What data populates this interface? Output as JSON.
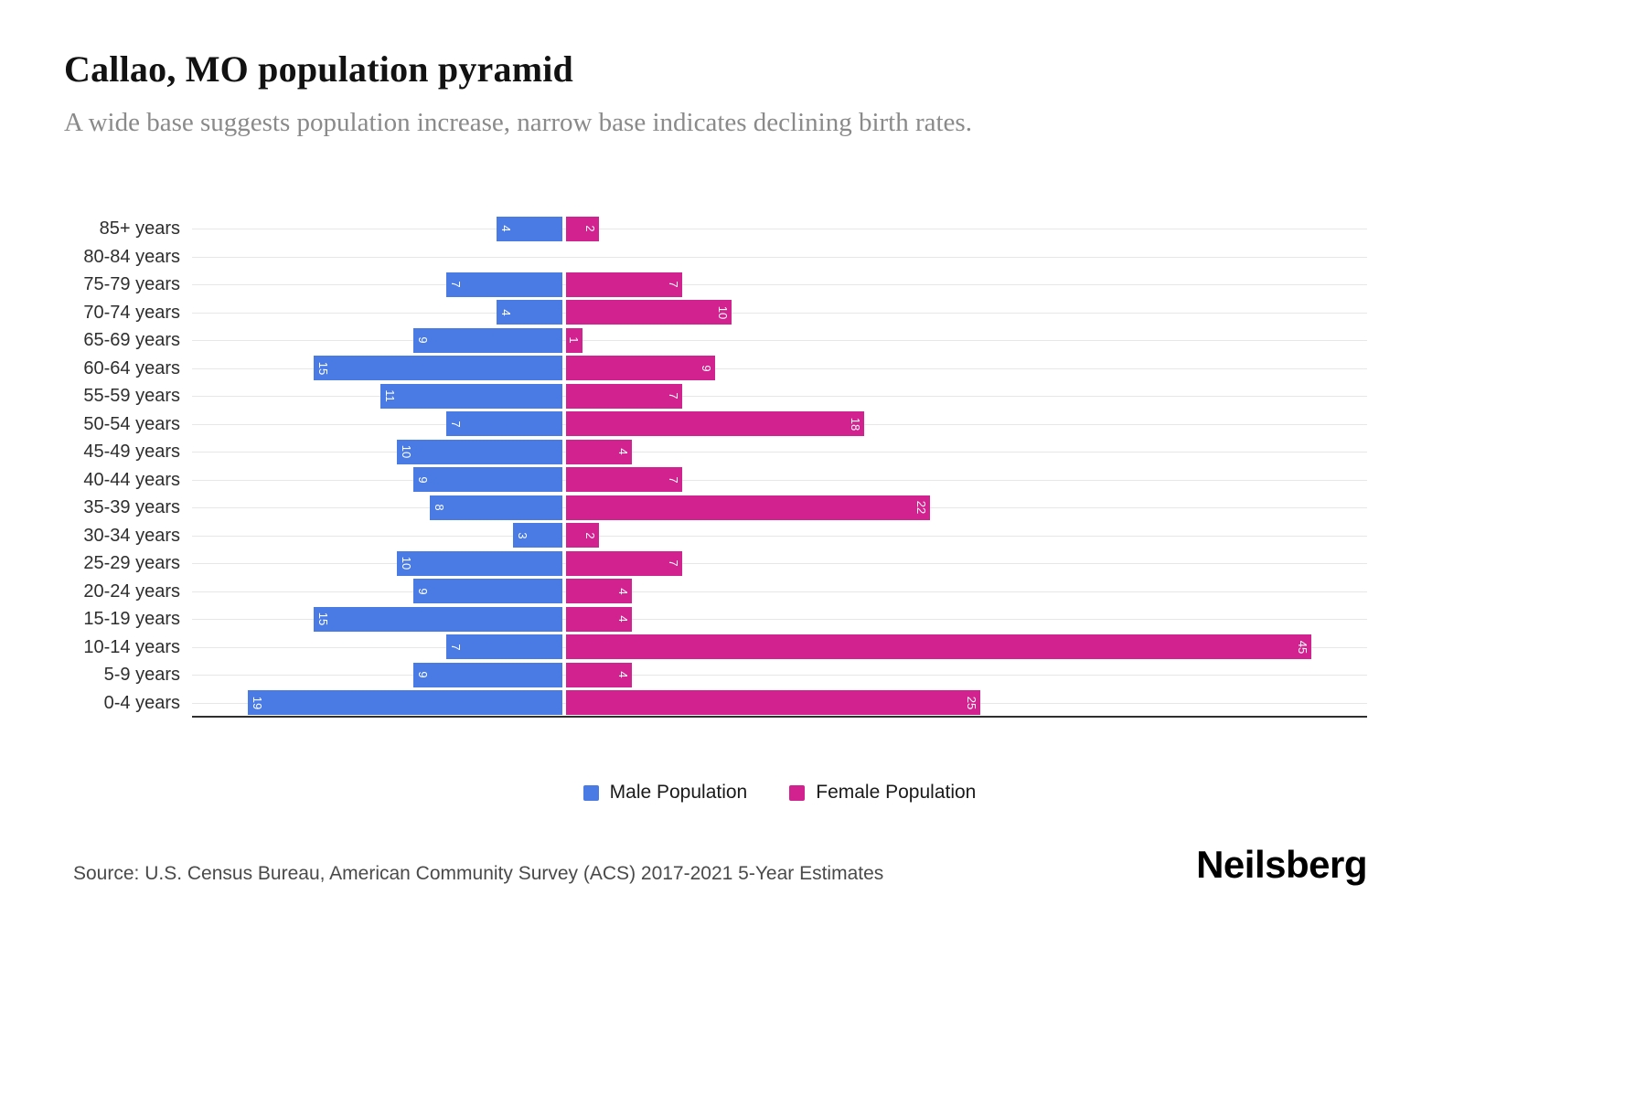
{
  "chart_data": {
    "type": "bar",
    "variant": "population-pyramid-horizontal",
    "title": "Callao, MO population pyramid",
    "subtitle": "A wide base suggests population increase, narrow base indicates declining birth rates.",
    "categories": [
      "85+ years",
      "80-84 years",
      "75-79 years",
      "70-74 years",
      "65-69 years",
      "60-64 years",
      "55-59 years",
      "50-54 years",
      "45-49 years",
      "40-44 years",
      "35-39 years",
      "30-34 years",
      "25-29 years",
      "20-24 years",
      "15-19 years",
      "10-14 years",
      "5-9 years",
      "0-4 years"
    ],
    "series": [
      {
        "name": "Male Population",
        "color": "#4a7be5",
        "values": [
          4,
          0,
          7,
          4,
          9,
          15,
          11,
          7,
          10,
          9,
          8,
          3,
          10,
          9,
          15,
          7,
          9,
          19
        ]
      },
      {
        "name": "Female Population",
        "color": "#d2228f",
        "values": [
          2,
          0,
          7,
          10,
          1,
          9,
          7,
          18,
          4,
          7,
          22,
          2,
          7,
          4,
          4,
          45,
          4,
          25
        ]
      }
    ],
    "xmax": 45,
    "grid": true,
    "value_labels": "inside-end-rotated-90-white",
    "legend_position": "bottom-center"
  },
  "footer": {
    "source": "Source: U.S. Census Bureau, American Community Survey (ACS) 2017-2021 5-Year Estimates",
    "brand": "Neilsberg"
  }
}
